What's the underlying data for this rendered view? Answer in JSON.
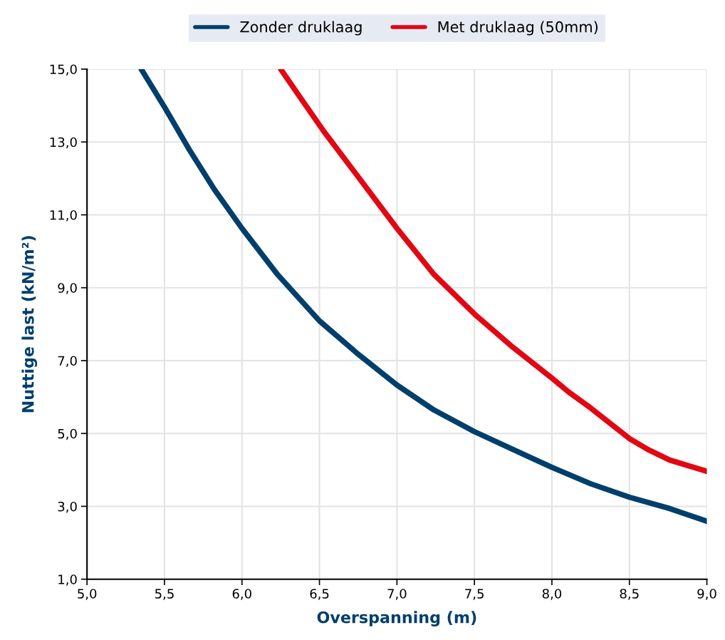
{
  "chart_data": {
    "type": "line",
    "xlabel": "Overspanning (m)",
    "ylabel": "Nuttige last (kN/m²)",
    "xlim": [
      5.0,
      9.0
    ],
    "ylim": [
      1.0,
      15.0
    ],
    "xticks": [
      {
        "value": 5.0,
        "label": "5,0"
      },
      {
        "value": 5.5,
        "label": "5,5"
      },
      {
        "value": 6.0,
        "label": "6,0"
      },
      {
        "value": 6.5,
        "label": "6,5"
      },
      {
        "value": 7.0,
        "label": "7,0"
      },
      {
        "value": 7.5,
        "label": "7,5"
      },
      {
        "value": 8.0,
        "label": "8,0"
      },
      {
        "value": 8.5,
        "label": "8,5"
      },
      {
        "value": 9.0,
        "label": "9,0"
      }
    ],
    "yticks": [
      {
        "value": 1.0,
        "label": "1,0"
      },
      {
        "value": 3.0,
        "label": "3,0"
      },
      {
        "value": 5.0,
        "label": "5,0"
      },
      {
        "value": 7.0,
        "label": "7,0"
      },
      {
        "value": 9.0,
        "label": "9,0"
      },
      {
        "value": 11.0,
        "label": "11,0"
      },
      {
        "value": 13.0,
        "label": "13,0"
      },
      {
        "value": 15.0,
        "label": "15,0"
      }
    ],
    "grid": true,
    "legend": "top",
    "marker": "none",
    "line_style": "solid",
    "series": [
      {
        "name": "Zonder druklaag",
        "color": "#003f6b",
        "x": [
          5.35,
          5.5,
          5.66,
          5.82,
          6.0,
          6.23,
          6.5,
          6.74,
          7.0,
          7.24,
          7.5,
          7.75,
          8.0,
          8.25,
          8.5,
          8.76,
          9.0
        ],
        "values": [
          15.0,
          13.96,
          12.79,
          11.71,
          10.63,
          9.36,
          8.09,
          7.21,
          6.33,
          5.64,
          5.05,
          4.56,
          4.07,
          3.62,
          3.25,
          2.94,
          2.59
        ]
      },
      {
        "name": "Met druklaag (50mm)",
        "color": "#e30613",
        "x": [
          6.25,
          6.37,
          6.53,
          6.74,
          7.0,
          7.24,
          7.5,
          7.75,
          8.0,
          8.11,
          8.25,
          8.5,
          8.62,
          8.76,
          9.0
        ],
        "values": [
          15.0,
          14.26,
          13.28,
          12.1,
          10.63,
          9.36,
          8.28,
          7.36,
          6.52,
          6.13,
          5.7,
          4.86,
          4.56,
          4.27,
          3.96
        ]
      }
    ]
  }
}
